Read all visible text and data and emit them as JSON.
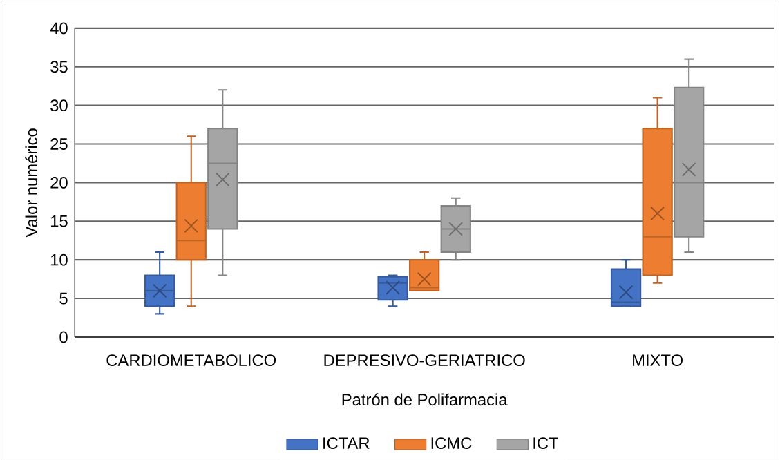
{
  "chart_data": {
    "type": "box",
    "xlabel": "Patrón de Polifarmacia",
    "ylabel": "Valor numérico",
    "categories": [
      "CARDIOMETABOLICO",
      "DEPRESIVO-GERIATRICO",
      "MIXTO"
    ],
    "ylim": [
      0,
      40
    ],
    "yticks": [
      0,
      5,
      10,
      15,
      20,
      25,
      30,
      35,
      40
    ],
    "grid": "y",
    "legend": "bottom",
    "series": [
      {
        "name": "ICTAR",
        "color": "#4472c4",
        "boxes": [
          {
            "low": 3,
            "q1": 4,
            "median": 6,
            "q3": 8,
            "high": 11,
            "mean": 6
          },
          {
            "low": 4,
            "q1": 4.8,
            "median": 7,
            "q3": 7.8,
            "high": 8,
            "mean": 6.4
          },
          {
            "low": 4,
            "q1": 4,
            "median": 4.5,
            "q3": 8.8,
            "high": 10,
            "mean": 5.8
          }
        ]
      },
      {
        "name": "ICMC",
        "color": "#ed7d31",
        "boxes": [
          {
            "low": 4,
            "q1": 10,
            "median": 12.5,
            "q3": 20,
            "high": 26,
            "mean": 14.4
          },
          {
            "low": 6,
            "q1": 6,
            "median": 6.4,
            "q3": 10,
            "high": 11,
            "mean": 7.5
          },
          {
            "low": 7,
            "q1": 8,
            "median": 13,
            "q3": 27,
            "high": 31,
            "mean": 16
          }
        ]
      },
      {
        "name": "ICT",
        "color": "#a5a5a5",
        "boxes": [
          {
            "low": 8,
            "q1": 14,
            "median": 22.5,
            "q3": 27,
            "high": 32,
            "mean": 20.4
          },
          {
            "low": 10,
            "q1": 11,
            "median": 14,
            "q3": 17,
            "high": 18,
            "mean": 14
          },
          {
            "low": 11,
            "q1": 13,
            "median": 20,
            "q3": 32.3,
            "high": 36,
            "mean": 21.7
          }
        ]
      }
    ]
  }
}
